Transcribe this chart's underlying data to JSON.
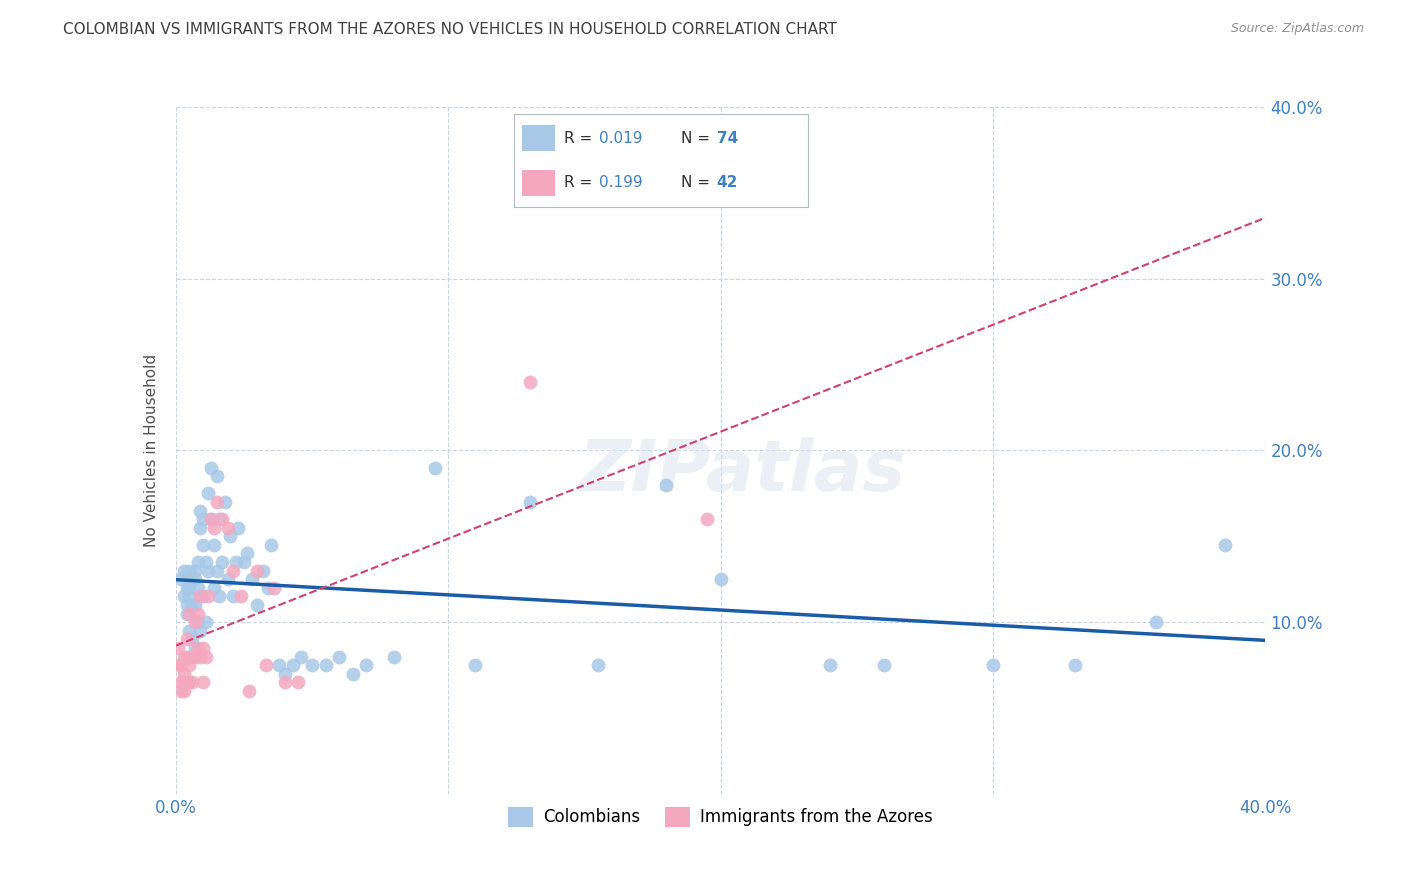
{
  "title": "COLOMBIAN VS IMMIGRANTS FROM THE AZORES NO VEHICLES IN HOUSEHOLD CORRELATION CHART",
  "source": "Source: ZipAtlas.com",
  "ylabel": "No Vehicles in Household",
  "xlim": [
    0.0,
    0.4
  ],
  "ylim": [
    0.0,
    0.4
  ],
  "xticks": [
    0.0,
    0.1,
    0.2,
    0.3,
    0.4
  ],
  "yticks": [
    0.0,
    0.1,
    0.2,
    0.3,
    0.4
  ],
  "xticklabels": [
    "0.0%",
    "",
    "",
    "",
    "40.0%"
  ],
  "yticklabels_right": [
    "",
    "10.0%",
    "20.0%",
    "30.0%",
    "40.0%"
  ],
  "legend_entries": [
    "Colombians",
    "Immigrants from the Azores"
  ],
  "r_colombian": 0.019,
  "n_colombian": 74,
  "r_azores": 0.199,
  "n_azores": 42,
  "color_colombian": "#a8c8e8",
  "color_azores": "#f4a8c0",
  "trendline_colombian_color": "#1a5ca8",
  "trendline_azores_color": "#d04070",
  "background_color": "#ffffff",
  "grid_color": "#c8d4e8",
  "title_color": "#404040",
  "axis_label_color": "#4080c0",
  "watermark": "ZIPatlas",
  "colombian_x": [
    0.002,
    0.003,
    0.003,
    0.004,
    0.004,
    0.004,
    0.005,
    0.005,
    0.005,
    0.005,
    0.006,
    0.006,
    0.006,
    0.007,
    0.007,
    0.007,
    0.007,
    0.008,
    0.008,
    0.008,
    0.009,
    0.009,
    0.009,
    0.01,
    0.01,
    0.01,
    0.011,
    0.011,
    0.012,
    0.012,
    0.013,
    0.013,
    0.014,
    0.014,
    0.015,
    0.015,
    0.016,
    0.016,
    0.017,
    0.018,
    0.019,
    0.02,
    0.021,
    0.022,
    0.023,
    0.025,
    0.026,
    0.028,
    0.03,
    0.032,
    0.034,
    0.035,
    0.038,
    0.04,
    0.043,
    0.046,
    0.05,
    0.055,
    0.06,
    0.065,
    0.07,
    0.08,
    0.095,
    0.11,
    0.13,
    0.155,
    0.18,
    0.2,
    0.24,
    0.26,
    0.3,
    0.33,
    0.36,
    0.385
  ],
  "colombian_y": [
    0.125,
    0.13,
    0.115,
    0.12,
    0.11,
    0.105,
    0.13,
    0.12,
    0.115,
    0.095,
    0.125,
    0.11,
    0.09,
    0.13,
    0.125,
    0.11,
    0.085,
    0.135,
    0.12,
    0.1,
    0.165,
    0.155,
    0.095,
    0.16,
    0.145,
    0.115,
    0.135,
    0.1,
    0.175,
    0.13,
    0.19,
    0.16,
    0.145,
    0.12,
    0.185,
    0.13,
    0.16,
    0.115,
    0.135,
    0.17,
    0.125,
    0.15,
    0.115,
    0.135,
    0.155,
    0.135,
    0.14,
    0.125,
    0.11,
    0.13,
    0.12,
    0.145,
    0.075,
    0.07,
    0.075,
    0.08,
    0.075,
    0.075,
    0.08,
    0.07,
    0.075,
    0.08,
    0.19,
    0.075,
    0.17,
    0.075,
    0.18,
    0.125,
    0.075,
    0.075,
    0.075,
    0.075,
    0.1,
    0.145
  ],
  "azores_x": [
    0.001,
    0.001,
    0.002,
    0.002,
    0.002,
    0.003,
    0.003,
    0.003,
    0.003,
    0.004,
    0.004,
    0.004,
    0.005,
    0.005,
    0.005,
    0.006,
    0.006,
    0.007,
    0.007,
    0.008,
    0.008,
    0.009,
    0.009,
    0.01,
    0.01,
    0.011,
    0.012,
    0.013,
    0.014,
    0.015,
    0.017,
    0.019,
    0.021,
    0.024,
    0.027,
    0.03,
    0.033,
    0.036,
    0.04,
    0.045,
    0.13,
    0.195
  ],
  "azores_y": [
    0.085,
    0.075,
    0.065,
    0.075,
    0.06,
    0.07,
    0.08,
    0.065,
    0.06,
    0.09,
    0.08,
    0.065,
    0.105,
    0.075,
    0.065,
    0.08,
    0.065,
    0.1,
    0.08,
    0.105,
    0.085,
    0.115,
    0.08,
    0.085,
    0.065,
    0.08,
    0.115,
    0.16,
    0.155,
    0.17,
    0.16,
    0.155,
    0.13,
    0.115,
    0.06,
    0.13,
    0.075,
    0.12,
    0.065,
    0.065,
    0.24,
    0.16
  ]
}
